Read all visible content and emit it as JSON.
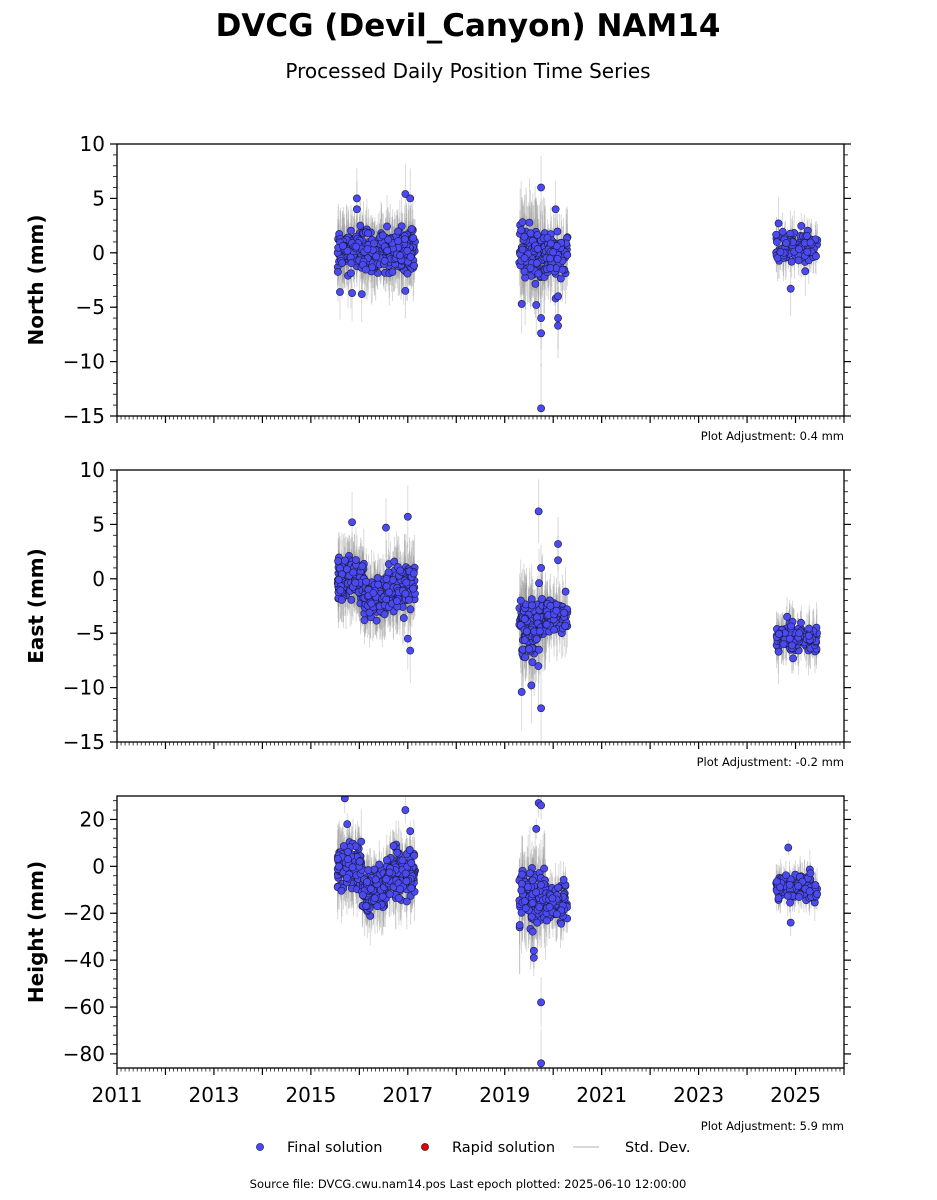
{
  "title": "DVCG (Devil_Canyon) NAM14",
  "subtitle": "Processed Daily Position Time Series",
  "footer": "Source file: DVCG.cwu.nam14.pos  Last epoch plotted: 2025-06-10 12:00:00",
  "legend": {
    "placement": "bottom-center",
    "items": [
      {
        "label": "Final solution",
        "color": "#4a4af0",
        "kind": "dot"
      },
      {
        "label": "Rapid solution",
        "color": "#e00000",
        "kind": "dot"
      },
      {
        "label": "Std. Dev.",
        "color": "#cccccc",
        "kind": "line"
      }
    ]
  },
  "colors": {
    "final": "#4a4af0",
    "rapid": "#e00000",
    "stddev": "#9a9a9a"
  },
  "chart_data": [
    {
      "type": "scatter",
      "ylabel": "North (mm)",
      "xlim": [
        2011,
        2026
      ],
      "ylim": [
        -15,
        10
      ],
      "yticks": [
        10,
        5,
        0,
        -5,
        -10,
        -15
      ],
      "xticks": [
        2011,
        2013,
        2015,
        2017,
        2019,
        2021,
        2023,
        2025
      ],
      "show_xtick_labels": false,
      "adjustment": "Plot Adjustment: 0.4 mm",
      "clusters": [
        {
          "x": [
            2015.55,
            2017.15
          ],
          "center": 0.2,
          "spread": 1.3,
          "n": 420,
          "err": 2.2
        },
        {
          "x": [
            2019.3,
            2019.85
          ],
          "center": 0.0,
          "spread": 1.8,
          "n": 130,
          "err": 3.0
        },
        {
          "x": [
            2019.85,
            2020.3
          ],
          "center": -0.3,
          "spread": 1.3,
          "n": 70,
          "err": 2.2
        },
        {
          "x": [
            2024.6,
            2025.45
          ],
          "center": 0.6,
          "spread": 0.9,
          "n": 120,
          "err": 1.5
        }
      ],
      "outliers": [
        {
          "x": 2015.95,
          "y": 5.0
        },
        {
          "x": 2015.95,
          "y": 4.0
        },
        {
          "x": 2016.95,
          "y": 5.4
        },
        {
          "x": 2017.05,
          "y": 5.0
        },
        {
          "x": 2015.6,
          "y": -3.6
        },
        {
          "x": 2015.85,
          "y": -3.7
        },
        {
          "x": 2016.05,
          "y": -3.8
        },
        {
          "x": 2016.95,
          "y": -3.5
        },
        {
          "x": 2019.35,
          "y": -4.7
        },
        {
          "x": 2019.65,
          "y": -4.8
        },
        {
          "x": 2019.75,
          "y": -6.0
        },
        {
          "x": 2019.75,
          "y": -7.4
        },
        {
          "x": 2019.75,
          "y": -14.3
        },
        {
          "x": 2019.75,
          "y": 6.0
        },
        {
          "x": 2020.05,
          "y": 4.0
        },
        {
          "x": 2020.05,
          "y": -4.2
        },
        {
          "x": 2020.1,
          "y": -4.0
        },
        {
          "x": 2020.1,
          "y": -6.0
        },
        {
          "x": 2020.1,
          "y": -6.7
        },
        {
          "x": 2024.65,
          "y": 2.7
        },
        {
          "x": 2024.9,
          "y": -3.3
        },
        {
          "x": 2025.2,
          "y": -1.7
        }
      ]
    },
    {
      "type": "scatter",
      "ylabel": "East (mm)",
      "xlim": [
        2011,
        2026
      ],
      "ylim": [
        -15,
        10
      ],
      "yticks": [
        10,
        5,
        0,
        -5,
        -10,
        -15
      ],
      "xticks": [
        2011,
        2013,
        2015,
        2017,
        2019,
        2021,
        2023,
        2025
      ],
      "show_xtick_labels": false,
      "adjustment": "Plot Adjustment: -0.2 mm",
      "clusters": [
        {
          "x": [
            2015.55,
            2016.1
          ],
          "center": 0.0,
          "spread": 1.3,
          "n": 160,
          "err": 2.2
        },
        {
          "x": [
            2016.1,
            2016.55
          ],
          "center": -1.8,
          "spread": 1.2,
          "n": 120,
          "err": 2.2
        },
        {
          "x": [
            2016.55,
            2017.15
          ],
          "center": -0.6,
          "spread": 1.4,
          "n": 150,
          "err": 2.4
        },
        {
          "x": [
            2019.3,
            2019.85
          ],
          "center": -4.5,
          "spread": 1.9,
          "n": 140,
          "err": 3.0
        },
        {
          "x": [
            2019.85,
            2020.3
          ],
          "center": -3.5,
          "spread": 1.1,
          "n": 70,
          "err": 2.0
        },
        {
          "x": [
            2024.6,
            2025.45
          ],
          "center": -5.3,
          "spread": 0.9,
          "n": 120,
          "err": 1.6
        }
      ],
      "outliers": [
        {
          "x": 2015.85,
          "y": 5.2
        },
        {
          "x": 2016.55,
          "y": 4.7
        },
        {
          "x": 2017.0,
          "y": 5.7
        },
        {
          "x": 2017.0,
          "y": -5.5
        },
        {
          "x": 2017.05,
          "y": -6.6
        },
        {
          "x": 2019.7,
          "y": 6.2
        },
        {
          "x": 2019.75,
          "y": 1.0
        },
        {
          "x": 2020.1,
          "y": 3.2
        },
        {
          "x": 2020.1,
          "y": 1.7
        },
        {
          "x": 2019.35,
          "y": -10.4
        },
        {
          "x": 2019.55,
          "y": -9.8
        },
        {
          "x": 2019.75,
          "y": -11.9
        },
        {
          "x": 2024.65,
          "y": -6.7
        }
      ]
    },
    {
      "type": "scatter",
      "ylabel": "Height (mm)",
      "xlim": [
        2011,
        2026
      ],
      "ylim": [
        -86,
        30
      ],
      "yticks": [
        20,
        0,
        -20,
        -40,
        -60,
        -80
      ],
      "xticks": [
        2011,
        2013,
        2015,
        2017,
        2019,
        2021,
        2023,
        2025
      ],
      "show_xtick_labels": true,
      "adjustment": "Plot Adjustment: 5.9 mm",
      "clusters": [
        {
          "x": [
            2015.55,
            2016.05
          ],
          "center": 0.0,
          "spread": 6.5,
          "n": 150,
          "err": 10
        },
        {
          "x": [
            2016.05,
            2016.55
          ],
          "center": -10.0,
          "spread": 6.0,
          "n": 130,
          "err": 9
        },
        {
          "x": [
            2016.55,
            2017.15
          ],
          "center": -3.0,
          "spread": 7.0,
          "n": 150,
          "err": 10
        },
        {
          "x": [
            2019.3,
            2019.85
          ],
          "center": -13.0,
          "spread": 8.0,
          "n": 140,
          "err": 14
        },
        {
          "x": [
            2019.85,
            2020.3
          ],
          "center": -16.0,
          "spread": 5.5,
          "n": 70,
          "err": 8
        },
        {
          "x": [
            2024.6,
            2025.45
          ],
          "center": -9.0,
          "spread": 4.0,
          "n": 120,
          "err": 6
        }
      ],
      "outliers": [
        {
          "x": 2015.7,
          "y": 29.0
        },
        {
          "x": 2015.75,
          "y": 18.0
        },
        {
          "x": 2016.95,
          "y": 24.0
        },
        {
          "x": 2017.05,
          "y": 15.0
        },
        {
          "x": 2019.65,
          "y": 16.0
        },
        {
          "x": 2019.7,
          "y": 27.0
        },
        {
          "x": 2019.75,
          "y": 26.0
        },
        {
          "x": 2019.6,
          "y": -36.0
        },
        {
          "x": 2019.6,
          "y": -39.0
        },
        {
          "x": 2019.75,
          "y": -58.0
        },
        {
          "x": 2019.75,
          "y": -84.0
        },
        {
          "x": 2024.9,
          "y": -24.0
        },
        {
          "x": 2024.85,
          "y": 8.0
        }
      ]
    }
  ]
}
